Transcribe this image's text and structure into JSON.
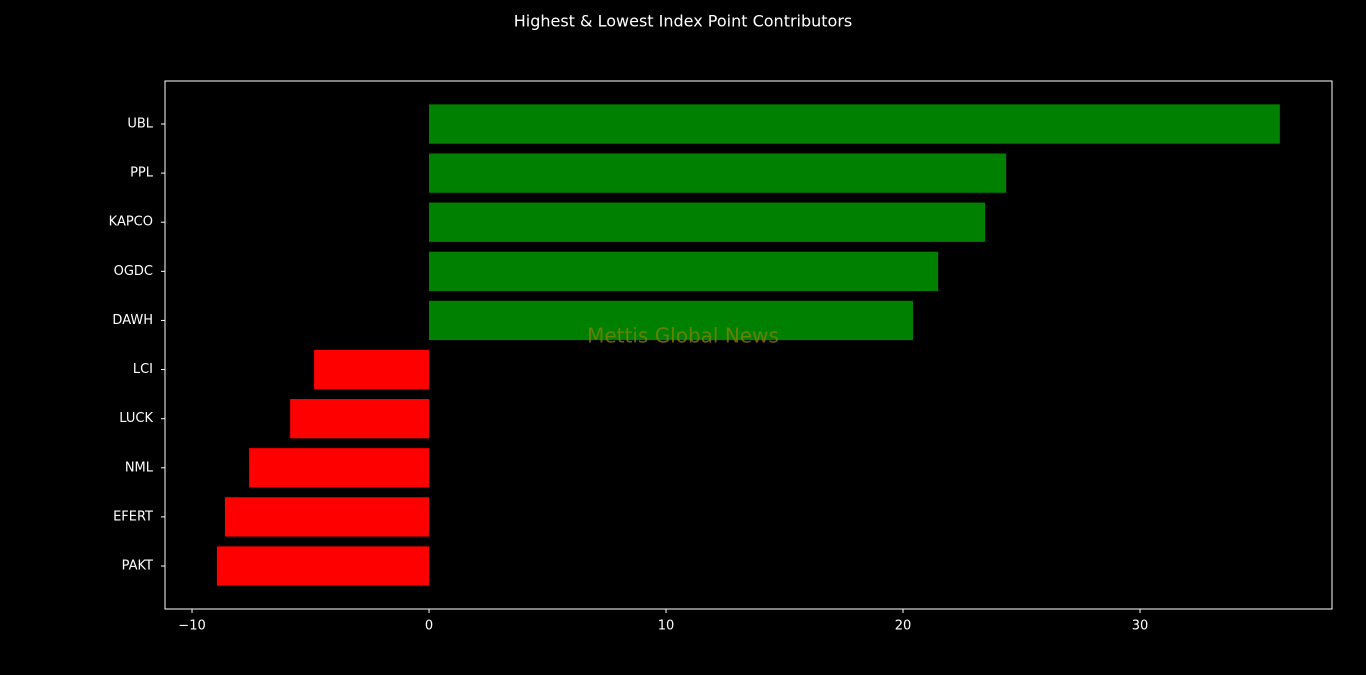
{
  "chart_data": {
    "type": "barh",
    "title": "Highest & Lowest Index Point Contributors",
    "watermark": "Mettis Global News",
    "categories": [
      "UBL",
      "PPL",
      "KAPCO",
      "OGDC",
      "DAWH",
      "LCI",
      "LUCK",
      "NML",
      "EFERT",
      "PAKT"
    ],
    "values": [
      35.9,
      24.35,
      23.46,
      21.48,
      20.42,
      -4.85,
      -5.86,
      -7.59,
      -8.61,
      -8.95
    ],
    "colors": [
      "#008000",
      "#008000",
      "#008000",
      "#008000",
      "#008000",
      "#ff0000",
      "#ff0000",
      "#ff0000",
      "#ff0000",
      "#ff0000"
    ],
    "xlim": [
      -11.14,
      38.1
    ],
    "xticks": [
      {
        "value": -10,
        "label": "−10"
      },
      0,
      10,
      20,
      30
    ]
  }
}
